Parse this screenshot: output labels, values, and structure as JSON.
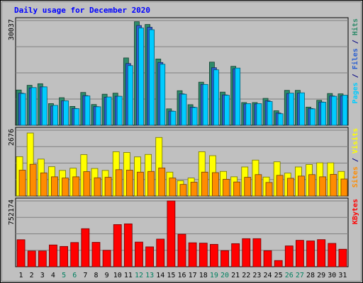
{
  "chart_data": {
    "type": "bar",
    "title": "Daily usage for December 2020",
    "days": [
      "1",
      "2",
      "3",
      "4",
      "5",
      "6",
      "7",
      "8",
      "9",
      "10",
      "11",
      "12",
      "13",
      "14",
      "15",
      "16",
      "17",
      "18",
      "19",
      "20",
      "21",
      "22",
      "23",
      "24",
      "25",
      "26",
      "27",
      "28",
      "29",
      "30",
      "31"
    ],
    "weekend_days": [
      "5",
      "6",
      "12",
      "13",
      "19",
      "20",
      "26",
      "27"
    ],
    "panels": [
      {
        "id": "top",
        "ymax_label": "30037",
        "ymax": 30037,
        "series": [
          {
            "name": "Hits",
            "color": "#2e8b6a",
            "values": [
              10100,
              11450,
              11900,
              6200,
              7900,
              5400,
              9400,
              5950,
              8900,
              9200,
              19300,
              29700,
              28900,
              19000,
              4700,
              9900,
              5900,
              12350,
              18100,
              9500,
              16900,
              6500,
              6500,
              7700,
              4150,
              10000,
              10000,
              5200,
              7150,
              9100,
              9000
            ]
          },
          {
            "name": "Files",
            "color": "#2b5fd0",
            "values": [
              9200,
              10700,
              11000,
              5500,
              7000,
              4800,
              8500,
              5350,
              8000,
              8300,
              17700,
              28600,
              28100,
              18000,
              4050,
              9000,
              5200,
              11700,
              16500,
              8700,
              16200,
              6100,
              6100,
              7000,
              3500,
              9100,
              9200,
              4800,
              6650,
              8400,
              8400
            ]
          },
          {
            "name": "Pages",
            "color": "#00ccff",
            "values": [
              9100,
              10800,
              11000,
              5700,
              7000,
              4750,
              8400,
              5300,
              8100,
              8300,
              17100,
              27900,
              27400,
              17500,
              4000,
              8900,
              5100,
              11700,
              15900,
              8600,
              16400,
              6200,
              6200,
              6800,
              3300,
              9200,
              9300,
              4700,
              6600,
              8300,
              8600
            ]
          }
        ]
      },
      {
        "id": "mid",
        "ymax_label": "2676",
        "ymax": 2676,
        "series": [
          {
            "name": "Visits",
            "color": "#ffff00",
            "values": [
              1600,
              2560,
              1500,
              1190,
              1040,
              1130,
              1680,
              1120,
              1040,
              1800,
              1770,
              1590,
              1690,
              2380,
              970,
              620,
              730,
              1800,
              1640,
              1000,
              780,
              1180,
              1460,
              770,
              1390,
              930,
              1180,
              1280,
              1350,
              1350,
              1000
            ]
          },
          {
            "name": "Sites",
            "color": "#ff8c00",
            "values": [
              1050,
              1290,
              940,
              780,
              730,
              780,
              990,
              740,
              760,
              1070,
              1050,
              970,
              1000,
              1140,
              730,
              470,
              560,
              970,
              950,
              680,
              570,
              760,
              870,
              550,
              840,
              720,
              810,
              870,
              780,
              880,
              690
            ]
          }
        ]
      },
      {
        "id": "bot",
        "ymax_label": "752174",
        "ymax": 752174,
        "series": [
          {
            "name": "KBytes",
            "color": "#ff0000",
            "values": [
              309000,
              180000,
              180000,
              249000,
              232000,
              277000,
              435000,
              279000,
              188000,
              482000,
              490000,
              282000,
              227000,
              316000,
              752000,
              372000,
              274000,
              270000,
              256000,
              184000,
              264000,
              321000,
              321000,
              183000,
              71000,
              238000,
              302000,
              295000,
              310000,
              267000,
              200000
            ]
          }
        ]
      }
    ]
  },
  "right_labels": {
    "top": [
      {
        "text": "Pages",
        "color": "#00ccff"
      },
      {
        "text": " / ",
        "color": "#000080"
      },
      {
        "text": "Files",
        "color": "#2b5fd0"
      },
      {
        "text": " / ",
        "color": "#000080"
      },
      {
        "text": "Hits",
        "color": "#2e8b6a"
      }
    ],
    "mid": [
      {
        "text": "Sites",
        "color": "#ff8c00"
      },
      {
        "text": " / ",
        "color": "#000080"
      },
      {
        "text": "Visits",
        "color": "#ffff00"
      }
    ],
    "bot": [
      {
        "text": "KBytes",
        "color": "#ff0000"
      }
    ]
  },
  "colors": {
    "title": "#0000ff",
    "background": "#c0c0c0",
    "plot_bg": "#c0c0c0",
    "grid": "#808080",
    "tick_weekday": "#000000",
    "tick_weekend": "#008060",
    "ylabel": "#000000"
  }
}
